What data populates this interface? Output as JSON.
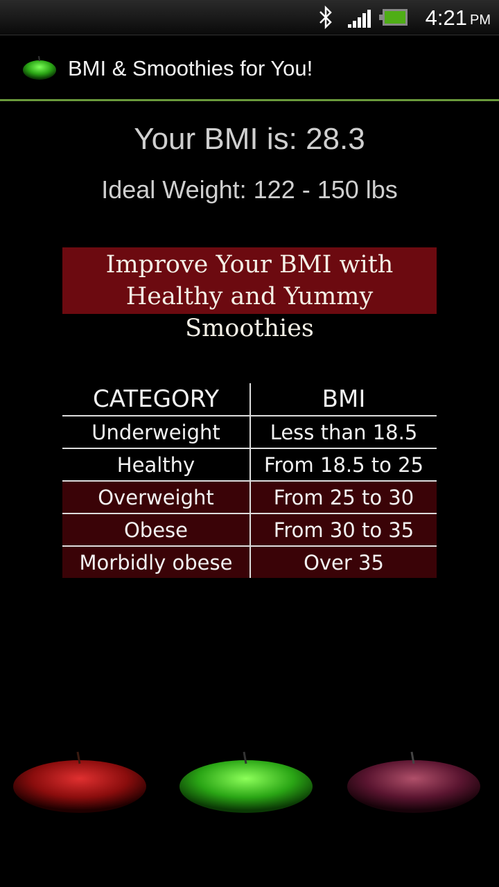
{
  "status_bar": {
    "time": "4:21",
    "ampm": "PM",
    "icons": [
      "bluetooth-icon",
      "signal-icon",
      "battery-icon"
    ],
    "battery_color": "#4fae16"
  },
  "action_bar": {
    "title": "BMI & Smoothies for You!",
    "icon": "green-apple-icon",
    "accent": "#6a9a3c"
  },
  "result": {
    "bmi_text": "Your BMI is: 28.3",
    "ideal_weight_text": "Ideal Weight: 122 - 150 lbs"
  },
  "banner": {
    "line1": "Improve Your BMI with",
    "line2": "Healthy and Yummy Smoothies",
    "color": "#6c0a10"
  },
  "bmi_table": {
    "headers": [
      "CATEGORY",
      "BMI"
    ],
    "rows": [
      {
        "category": "Underweight",
        "bmi": "Less than 18.5"
      },
      {
        "category": "Healthy",
        "bmi": "From 18.5 to 25"
      },
      {
        "category": "Overweight",
        "bmi": "From 25 to 30"
      },
      {
        "category": "Obese",
        "bmi": "From 30 to 35"
      },
      {
        "category": "Morbidly obese",
        "bmi": "Over 35"
      }
    ]
  },
  "footer_apples": [
    "red-apple",
    "green-apple",
    "purple-apple"
  ]
}
